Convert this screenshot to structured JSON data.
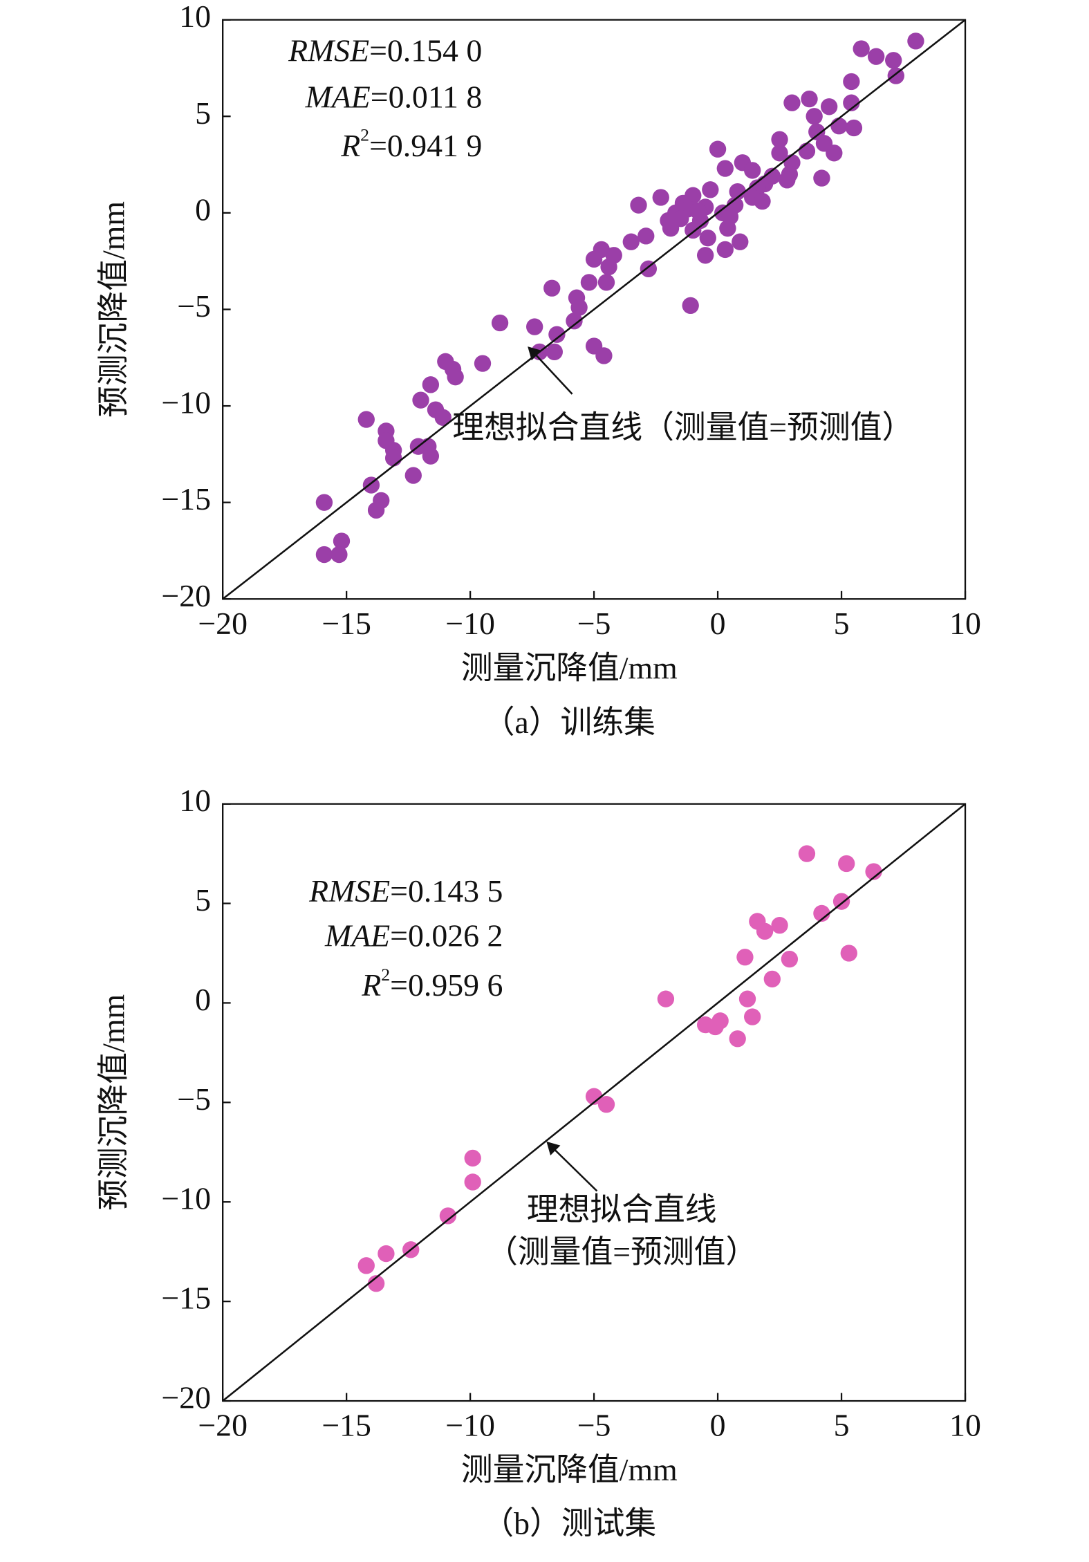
{
  "chart_data": [
    {
      "type": "scatter",
      "caption": "（a）训练集",
      "xlabel": "测量沉降值/mm",
      "ylabel": "预测沉降值/mm",
      "color": "#9b3fa8",
      "xlim": [
        -20,
        10
      ],
      "ylim": [
        -20,
        10
      ],
      "xticks": [
        {
          "value": -20,
          "label": "−20"
        },
        {
          "value": -15,
          "label": "−15"
        },
        {
          "value": -10,
          "label": "−10"
        },
        {
          "value": -5,
          "label": "−5"
        },
        0,
        5,
        10
      ],
      "yticks": [
        {
          "value": -20,
          "label": "−20"
        },
        {
          "value": -15,
          "label": "−15"
        },
        {
          "value": -10,
          "label": "−10"
        },
        {
          "value": -5,
          "label": "−5"
        },
        0,
        5,
        10
      ],
      "metrics": [
        {
          "label": "RMSE",
          "text": "=0.154 0"
        },
        {
          "label": "MAE",
          "text": "=0.011 8"
        },
        {
          "label": "R",
          "sup": "2",
          "text": "=0.941 9"
        }
      ],
      "reference_line": {
        "x": [
          -20,
          10
        ],
        "y": [
          -20,
          10
        ],
        "annotation": [
          "理想拟合直线（测量值=预测值）"
        ]
      },
      "x": [
        8.0,
        5.8,
        6.4,
        7.1,
        7.2,
        5.4,
        3.7,
        3.0,
        4.5,
        5.4,
        3.9,
        4.9,
        5.5,
        4.0,
        2.5,
        4.3,
        0.0,
        3.6,
        2.5,
        4.7,
        3.0,
        2.9,
        1.0,
        0.3,
        1.4,
        4.2,
        1.9,
        1.6,
        0.8,
        -0.3,
        -1.0,
        -1.4,
        1.4,
        0.7,
        -0.5,
        -1.2,
        -1.7,
        -2.3,
        -3.2,
        -0.7,
        -1.0,
        -0.4,
        0.4,
        0.9,
        0.3,
        -0.5,
        -1.9,
        -2.9,
        -2.8,
        -3.5,
        -4.2,
        -4.7,
        -5.0,
        -4.4,
        -5.2,
        -4.5,
        -6.7,
        -5.7,
        -5.6,
        -5.8,
        -1.1,
        -8.8,
        -7.4,
        -6.5,
        -7.2,
        -6.6,
        -5.0,
        -4.6,
        -11.0,
        -9.5,
        -10.7,
        -10.6,
        -11.6,
        -12.0,
        -11.4,
        -11.1,
        -14.2,
        -13.4,
        -13.4,
        -12.1,
        -13.1,
        -11.7,
        -13.1,
        -11.6,
        -12.3,
        -14.0,
        -13.6,
        -13.8,
        -15.9,
        -15.2,
        -15.9,
        -15.3,
        -1.5,
        -0.8,
        0.2,
        0.5,
        -2.0,
        1.8,
        2.2,
        2.8
      ],
      "y": [
        8.9,
        8.5,
        8.1,
        7.9,
        7.1,
        6.8,
        5.9,
        5.7,
        5.5,
        5.7,
        5.0,
        4.5,
        4.4,
        4.2,
        3.8,
        3.6,
        3.3,
        3.2,
        3.1,
        3.1,
        2.6,
        2.0,
        2.6,
        2.3,
        2.2,
        1.8,
        1.5,
        1.3,
        1.1,
        1.2,
        0.9,
        0.5,
        0.8,
        0.4,
        0.3,
        0.2,
        0.0,
        0.8,
        0.4,
        -0.4,
        -0.9,
        -1.3,
        -0.8,
        -1.5,
        -1.9,
        -2.2,
        -0.8,
        -1.2,
        -2.9,
        -1.5,
        -2.2,
        -1.9,
        -2.4,
        -2.8,
        -3.6,
        -3.6,
        -3.9,
        -4.4,
        -4.9,
        -5.6,
        -4.8,
        -5.7,
        -5.9,
        -6.3,
        -7.2,
        -7.2,
        -6.9,
        -7.4,
        -7.7,
        -7.8,
        -8.1,
        -8.5,
        -8.9,
        -9.7,
        -10.2,
        -10.6,
        -10.7,
        -11.3,
        -11.8,
        -12.1,
        -12.3,
        -12.1,
        -12.7,
        -12.6,
        -13.6,
        -14.1,
        -14.9,
        -15.4,
        -15.0,
        -17.0,
        -17.7,
        -17.7,
        -0.3,
        0.1,
        0.0,
        -0.2,
        -0.4,
        0.6,
        1.9,
        1.7
      ]
    },
    {
      "type": "scatter",
      "caption": "（b）测试集",
      "xlabel": "测量沉降值/mm",
      "ylabel": "预测沉降值/mm",
      "color": "#e060b8",
      "xlim": [
        -20,
        10
      ],
      "ylim": [
        -20,
        10
      ],
      "xticks": [
        {
          "value": -20,
          "label": "−20"
        },
        {
          "value": -15,
          "label": "−15"
        },
        {
          "value": -10,
          "label": "−10"
        },
        {
          "value": -5,
          "label": "−5"
        },
        0,
        5,
        10
      ],
      "yticks": [
        {
          "value": -20,
          "label": "−20"
        },
        {
          "value": -15,
          "label": "−15"
        },
        {
          "value": -10,
          "label": "−10"
        },
        {
          "value": -5,
          "label": "−5"
        },
        0,
        5,
        10
      ],
      "metrics": [
        {
          "label": "RMSE",
          "text": "=0.143 5"
        },
        {
          "label": "MAE",
          "text": "=0.026 2"
        },
        {
          "label": "R",
          "sup": "2",
          "text": "=0.959 6"
        }
      ],
      "reference_line": {
        "x": [
          -20,
          10
        ],
        "y": [
          -20,
          10
        ],
        "annotation": [
          "理想拟合直线",
          "（测量值=预测值）"
        ]
      },
      "x": [
        3.6,
        5.2,
        6.3,
        5.0,
        4.2,
        1.6,
        2.5,
        1.9,
        1.1,
        2.9,
        5.3,
        2.2,
        -2.1,
        1.2,
        1.4,
        -0.5,
        0.1,
        -0.1,
        0.8,
        -5.0,
        -4.5,
        -9.9,
        -9.9,
        -10.9,
        -12.4,
        -13.4,
        -14.2,
        -13.8
      ],
      "y": [
        7.5,
        7.0,
        6.6,
        5.1,
        4.5,
        4.1,
        3.9,
        3.6,
        2.3,
        2.2,
        2.5,
        1.2,
        0.2,
        0.2,
        -0.7,
        -1.1,
        -0.9,
        -1.2,
        -1.8,
        -4.7,
        -5.1,
        -7.8,
        -9.0,
        -10.7,
        -12.4,
        -12.6,
        -13.2,
        -14.1
      ]
    }
  ]
}
